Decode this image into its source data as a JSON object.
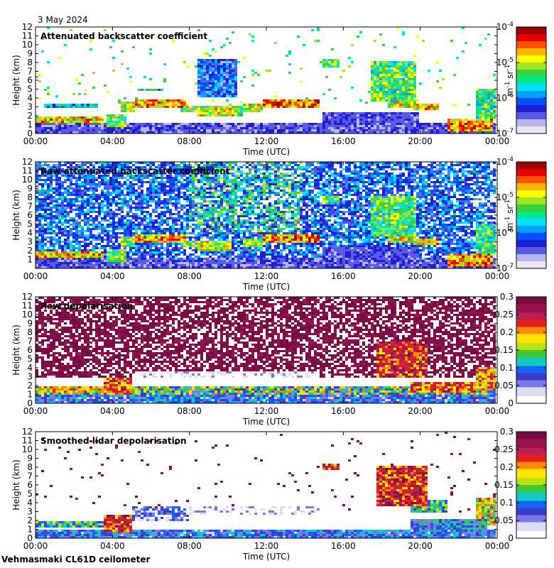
{
  "date": "3 May 2024",
  "footer": "Vehmasmaki CL61D ceilometer",
  "colors": {
    "frame": "#000000",
    "background": "#ffffff",
    "backscatter_scale": [
      "#e6e6f5",
      "#b7b7ee",
      "#5a5ae6",
      "#1e1ed2",
      "#0050ff",
      "#00a0ff",
      "#00e0ff",
      "#00e88c",
      "#3cd23c",
      "#a0e61e",
      "#ffff00",
      "#ffb400",
      "#ff5000",
      "#e60000",
      "#a00000"
    ],
    "depol_scale": [
      "#ffffff",
      "#dcdcf5",
      "#7878e6",
      "#3c3cc8",
      "#1464ff",
      "#14c8c8",
      "#3cc83c",
      "#b4e614",
      "#ffe600",
      "#ff8c00",
      "#e61e1e",
      "#be1e50",
      "#96144b",
      "#780a46"
    ]
  },
  "chart_data": [
    {
      "type": "heatmap",
      "title": "Attenuated backscatter coefficient",
      "xlabel": "Time (UTC)",
      "ylabel": "Height (km)",
      "x_ticks": [
        "00:00",
        "04:00",
        "08:00",
        "12:00",
        "16:00",
        "20:00",
        "00:00"
      ],
      "xlim_hours": [
        0,
        24
      ],
      "y_ticks": [
        "0",
        "1",
        "2",
        "3",
        "4",
        "5",
        "6",
        "7",
        "8",
        "9",
        "10",
        "11",
        "12"
      ],
      "ylim": [
        0,
        12
      ],
      "colorbar": {
        "scale": "log",
        "range": [
          1e-07,
          0.0001
        ],
        "ticks": [
          {
            "base": "10",
            "exp": "-4"
          },
          {
            "base": "10",
            "exp": "-5"
          },
          {
            "base": "10",
            "exp": "-6"
          },
          {
            "base": "10",
            "exp": "-7"
          }
        ],
        "label": {
          "base": "m",
          "exp1": "-1",
          "mid": " sr",
          "exp2": "-1"
        }
      },
      "mode": "bs",
      "noise_density": 0.03,
      "noise_start": 3,
      "features": [
        {
          "t0": 0,
          "t1": 3.5,
          "h0": 1.3,
          "h1": 1.9,
          "level": 0.9
        },
        {
          "t0": 0.5,
          "t1": 3.2,
          "h0": 2.8,
          "h1": 3.4,
          "level": 0.55
        },
        {
          "t0": 3.7,
          "t1": 4.8,
          "h0": 0.8,
          "h1": 2.2,
          "level": 0.75
        },
        {
          "t0": 4.5,
          "t1": 5.2,
          "h0": 2.3,
          "h1": 3.6,
          "level": 0.8
        },
        {
          "t0": 5.2,
          "t1": 7.8,
          "h0": 2.8,
          "h1": 3.8,
          "level": 0.93
        },
        {
          "t0": 7.5,
          "t1": 8.5,
          "h0": 2.3,
          "h1": 3.1,
          "level": 0.78
        },
        {
          "t0": 8.5,
          "t1": 10.2,
          "h0": 1.8,
          "h1": 3.0,
          "level": 0.82
        },
        {
          "t0": 10.0,
          "t1": 10.8,
          "h0": 2.0,
          "h1": 3.1,
          "level": 0.72
        },
        {
          "t0": 10.8,
          "t1": 11.8,
          "h0": 2.5,
          "h1": 3.3,
          "level": 0.82
        },
        {
          "t0": 11.8,
          "t1": 14.8,
          "h0": 2.9,
          "h1": 3.8,
          "level": 0.97
        },
        {
          "t0": 5.3,
          "t1": 6.6,
          "h0": 4.7,
          "h1": 5.0,
          "level": 0.68
        },
        {
          "t0": 14.9,
          "t1": 15.9,
          "h0": 7.5,
          "h1": 8.4,
          "level": 0.75
        },
        {
          "t0": 17.5,
          "t1": 19.8,
          "h0": 3.6,
          "h1": 8.2,
          "level": 0.72
        },
        {
          "t0": 18.3,
          "t1": 19.8,
          "h0": 3.0,
          "h1": 5.5,
          "level": 0.86
        },
        {
          "t0": 19.7,
          "t1": 21.0,
          "h0": 2.6,
          "h1": 3.3,
          "level": 0.9
        },
        {
          "t0": 21.5,
          "t1": 23.9,
          "h0": 0.2,
          "h1": 1.6,
          "level": 0.95
        },
        {
          "t0": 23.0,
          "t1": 24.0,
          "h0": 1.5,
          "h1": 5.0,
          "level": 0.7
        },
        {
          "t0": 8.5,
          "t1": 10.5,
          "h0": 4.0,
          "h1": 8.5,
          "level": 0.45
        }
      ]
    },
    {
      "type": "heatmap",
      "title": "Raw attenuated backscatter coefficient",
      "xlabel": "Time (UTC)",
      "ylabel": "Height (km)",
      "x_ticks": [
        "00:00",
        "04:00",
        "08:00",
        "12:00",
        "16:00",
        "20:00",
        "00:00"
      ],
      "xlim_hours": [
        0,
        24
      ],
      "y_ticks": [
        "1",
        "2",
        "3",
        "4",
        "5",
        "6",
        "7",
        "8",
        "9",
        "10",
        "11",
        "12"
      ],
      "ylim": [
        0,
        12
      ],
      "colorbar": {
        "scale": "log",
        "range": [
          1e-07,
          0.0001
        ],
        "ticks": [
          {
            "base": "10",
            "exp": "-4"
          },
          {
            "base": "10",
            "exp": "-5"
          },
          {
            "base": "10",
            "exp": "-6"
          },
          {
            "base": "10",
            "exp": "-7"
          }
        ],
        "label": {
          "base": "m",
          "exp1": "-1",
          "mid": " sr",
          "exp2": "-1"
        }
      },
      "mode": "rawbs",
      "noise_density": 0.55,
      "noise_start": 0,
      "features": [
        {
          "t0": 0,
          "t1": 3.5,
          "h0": 1.3,
          "h1": 1.9,
          "level": 0.9
        },
        {
          "t0": 3.7,
          "t1": 4.8,
          "h0": 0.8,
          "h1": 2.2,
          "level": 0.75
        },
        {
          "t0": 4.5,
          "t1": 5.2,
          "h0": 2.3,
          "h1": 3.6,
          "level": 0.8
        },
        {
          "t0": 5.2,
          "t1": 7.8,
          "h0": 2.8,
          "h1": 3.8,
          "level": 0.93
        },
        {
          "t0": 7.5,
          "t1": 8.5,
          "h0": 2.3,
          "h1": 3.1,
          "level": 0.78
        },
        {
          "t0": 8.5,
          "t1": 10.2,
          "h0": 1.8,
          "h1": 3.0,
          "level": 0.82
        },
        {
          "t0": 10.8,
          "t1": 11.8,
          "h0": 2.5,
          "h1": 3.3,
          "level": 0.82
        },
        {
          "t0": 11.8,
          "t1": 14.8,
          "h0": 2.9,
          "h1": 3.8,
          "level": 0.97
        },
        {
          "t0": 14.9,
          "t1": 15.9,
          "h0": 7.5,
          "h1": 8.2,
          "level": 0.75
        },
        {
          "t0": 17.5,
          "t1": 19.8,
          "h0": 3.6,
          "h1": 8.2,
          "level": 0.72
        },
        {
          "t0": 18.3,
          "t1": 19.8,
          "h0": 3.0,
          "h1": 5.5,
          "level": 0.86
        },
        {
          "t0": 19.7,
          "t1": 21.0,
          "h0": 2.6,
          "h1": 3.3,
          "level": 0.9
        },
        {
          "t0": 21.5,
          "t1": 23.9,
          "h0": 0.2,
          "h1": 1.6,
          "level": 0.95
        },
        {
          "t0": 23.0,
          "t1": 24.0,
          "h0": 1.5,
          "h1": 5.0,
          "level": 0.7
        }
      ]
    },
    {
      "type": "heatmap",
      "title": "Raw depolarisation",
      "xlabel": "Time (UTC)",
      "ylabel": "Height (km)",
      "x_ticks": [
        "00:00",
        "04:00",
        "08:00",
        "12:00",
        "16:00",
        "20:00",
        "00:00"
      ],
      "xlim_hours": [
        0,
        24
      ],
      "y_ticks": [
        "0",
        "1",
        "2",
        "3",
        "4",
        "5",
        "6",
        "7",
        "8",
        "9",
        "10",
        "11",
        "12"
      ],
      "ylim": [
        0,
        12
      ],
      "colorbar": {
        "scale": "linear",
        "range": [
          0,
          0.3
        ],
        "ticks": [
          "0.3",
          "0.25",
          "0.2",
          "0.15",
          "0.1",
          "0.05",
          "0"
        ]
      },
      "mode": "rawdep",
      "noise_density": 0.7,
      "noise_start": 3,
      "features": [
        {
          "t0": 0,
          "t1": 3.5,
          "h0": 1.2,
          "h1": 1.8,
          "level": 0.8
        },
        {
          "t0": 3.5,
          "t1": 5.0,
          "h0": 1.0,
          "h1": 2.8,
          "level": 0.9
        },
        {
          "t0": 5.2,
          "t1": 14.8,
          "h0": 2.8,
          "h1": 3.6,
          "level": 0.2
        },
        {
          "t0": 17.8,
          "t1": 20.5,
          "h0": 3.0,
          "h1": 7.0,
          "level": 0.95
        },
        {
          "t0": 19.5,
          "t1": 23.0,
          "h0": 1.2,
          "h1": 2.5,
          "level": 0.9
        },
        {
          "t0": 23.0,
          "t1": 24.0,
          "h0": 1.5,
          "h1": 4.0,
          "level": 0.85
        }
      ]
    },
    {
      "type": "heatmap",
      "title": "Smoothed lidar depolarisation",
      "xlabel": "Time (UTC)",
      "ylabel": "Height (km)",
      "x_ticks": [
        "00:00",
        "04:00",
        "08:00",
        "12:00",
        "16:00",
        "20:00",
        "00:00"
      ],
      "xlim_hours": [
        0,
        24
      ],
      "y_ticks": [
        "0",
        "1",
        "2",
        "3",
        "4",
        "5",
        "6",
        "7",
        "8",
        "9",
        "10",
        "11",
        "12"
      ],
      "ylim": [
        0,
        12
      ],
      "colorbar": {
        "scale": "linear",
        "range": [
          0,
          0.3
        ],
        "ticks": [
          "0.3",
          "0.25",
          "0.2",
          "0.15",
          "0.1",
          "0.05",
          "0"
        ]
      },
      "mode": "smdep",
      "noise_density": 0.02,
      "noise_start": 3,
      "features": [
        {
          "t0": 0,
          "t1": 3.5,
          "h0": 1.2,
          "h1": 1.9,
          "level": 0.6
        },
        {
          "t0": 3.5,
          "t1": 5.0,
          "h0": 0.8,
          "h1": 2.6,
          "level": 0.95
        },
        {
          "t0": 5.0,
          "t1": 8.0,
          "h0": 2.0,
          "h1": 3.6,
          "level": 0.35
        },
        {
          "t0": 8.0,
          "t1": 14.8,
          "h0": 2.6,
          "h1": 3.6,
          "level": 0.2
        },
        {
          "t0": 14.9,
          "t1": 15.8,
          "h0": 7.6,
          "h1": 8.3,
          "level": 0.95
        },
        {
          "t0": 17.8,
          "t1": 20.5,
          "h0": 3.5,
          "h1": 8.2,
          "level": 0.95
        },
        {
          "t0": 19.5,
          "t1": 21.5,
          "h0": 3.0,
          "h1": 4.2,
          "level": 0.6
        },
        {
          "t0": 19.5,
          "t1": 23.5,
          "h0": 1.0,
          "h1": 2.2,
          "level": 0.5
        },
        {
          "t0": 23.0,
          "t1": 24.0,
          "h0": 1.5,
          "h1": 4.5,
          "level": 0.75
        }
      ]
    }
  ]
}
